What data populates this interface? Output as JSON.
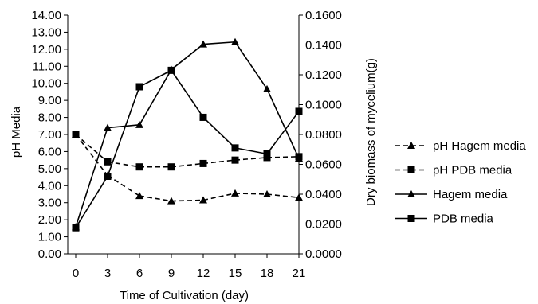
{
  "chart_data": {
    "type": "line",
    "x": [
      0,
      3,
      6,
      9,
      12,
      15,
      18,
      21
    ],
    "x_ticks": [
      "0",
      "3",
      "6",
      "9",
      "12",
      "15",
      "18",
      "21"
    ],
    "xlabel": "Time of Cultivation (day)",
    "xlim": [
      0,
      21
    ],
    "ylabel_left": "pH Media",
    "ylim_left": [
      0,
      14
    ],
    "yticks_left": [
      "0.00",
      "1.00",
      "2.00",
      "3.00",
      "4.00",
      "5.00",
      "6.00",
      "7.00",
      "8.00",
      "9.00",
      "10.00",
      "11.00",
      "12.00",
      "13.00",
      "14.00"
    ],
    "ylabel_right": "Dry  biomass  of mycelium(g)",
    "ylim_right": [
      0,
      0.16
    ],
    "yticks_right": [
      "0.0000",
      "0.0200",
      "0.0400",
      "0.0600",
      "0.0800",
      "0.1000",
      "0.1200",
      "0.1400",
      "0.1600"
    ],
    "grid": false,
    "legend_position": "right",
    "series": [
      {
        "name": "pH Hagem media",
        "axis": "left",
        "style": "dashed",
        "marker": "triangle",
        "values": [
          7.0,
          4.6,
          3.4,
          3.1,
          3.15,
          3.55,
          3.5,
          3.3
        ]
      },
      {
        "name": "pH PDB media",
        "axis": "left",
        "style": "dashed",
        "marker": "square",
        "values": [
          7.0,
          5.4,
          5.1,
          5.1,
          5.3,
          5.5,
          5.65,
          5.7
        ]
      },
      {
        "name": "Hagem media",
        "axis": "right",
        "style": "solid",
        "marker": "triangle",
        "values": [
          0.018,
          0.0845,
          0.0865,
          0.1235,
          0.1405,
          0.142,
          0.1105,
          0.064
        ]
      },
      {
        "name": "PDB media",
        "axis": "right",
        "style": "solid",
        "marker": "square",
        "values": [
          0.0175,
          0.052,
          0.112,
          0.123,
          0.0915,
          0.071,
          0.067,
          0.0955
        ]
      }
    ],
    "colors": {
      "line": "#000000",
      "background": "#ffffff"
    }
  }
}
